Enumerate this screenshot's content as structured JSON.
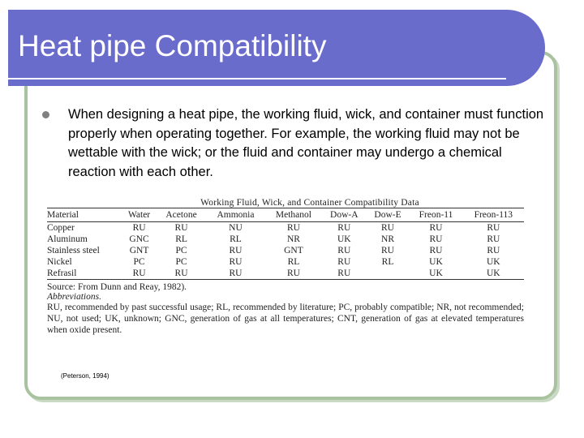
{
  "slide": {
    "title": "Heat pipe Compatibility",
    "bullet": "When designing a heat pipe, the working fluid, wick, and container must function properly when operating together. For example, the working fluid may not be wettable with the wick; or the fluid and container may undergo a chemical reaction with each other.",
    "citation": "(Peterson, 1994)",
    "colors": {
      "banner": "#6a6ccc",
      "frame": "#a9c3a0"
    }
  },
  "table": {
    "caption": "Working Fluid, Wick, and Container Compatibility Data",
    "headers": [
      "Material",
      "Water",
      "Acetone",
      "Ammonia",
      "Methanol",
      "Dow-A",
      "Dow-E",
      "Freon-11",
      "Freon-113"
    ],
    "rows": [
      [
        "Copper",
        "RU",
        "RU",
        "NU",
        "RU",
        "RU",
        "RU",
        "RU",
        "RU"
      ],
      [
        "Aluminum",
        "GNC",
        "RL",
        "RL",
        "NR",
        "UK",
        "NR",
        "RU",
        "RU"
      ],
      [
        "Stainless steel",
        "GNT",
        "PC",
        "RU",
        "GNT",
        "RU",
        "RU",
        "RU",
        "RU"
      ],
      [
        "Nickel",
        "PC",
        "PC",
        "RU",
        "RL",
        "RU",
        "RL",
        "UK",
        "UK"
      ],
      [
        "Refrasil",
        "RU",
        "RU",
        "RU",
        "RU",
        "RU",
        "",
        "UK",
        "UK"
      ]
    ],
    "source": "Source: From Dunn and Reay, 1982).",
    "abbreviations_heading": "Abbreviations.",
    "abbreviations": "RU, recommended by past successful usage; RL, recommended by literature; PC, probably compatible; NR, not recommended; NU, not used; UK, unknown; GNC, generation of gas at all temperatures; CNT, generation of gas at elevated temperatures when oxide present."
  }
}
